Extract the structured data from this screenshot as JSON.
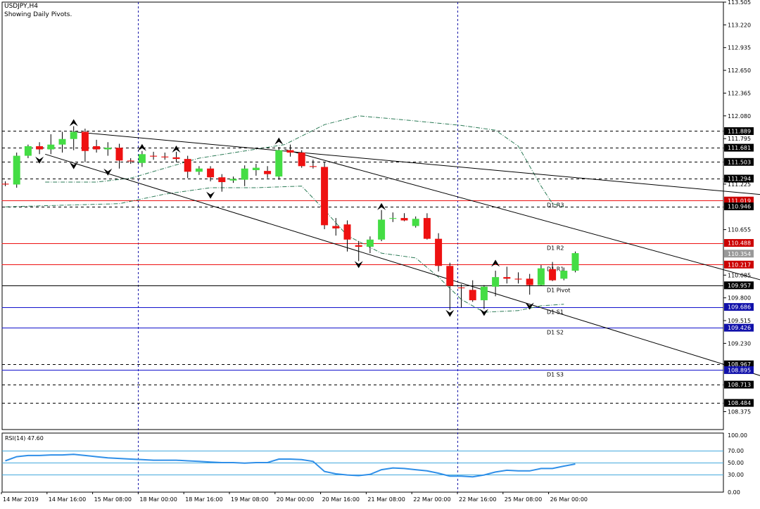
{
  "header": {
    "symbol_line": "USDJPY,H4",
    "sub_line": "Showing Daily Pivots."
  },
  "colors": {
    "background": "#ffffff",
    "axis": "#000000",
    "bull_candle": "#44dd44",
    "bear_candle": "#ee1111",
    "wick": "#000000",
    "resistance_line": "#ee1111",
    "support_line": "#1111cc",
    "pivot_line": "#000000",
    "trend_line": "#000000",
    "fractal_band": "#2a7a55",
    "rsi_line": "#2f8fe8",
    "rsi_level": "#44aadd",
    "vgrid": "#1a1aaa",
    "price_tag_dark": "#000000",
    "price_tag_red": "#cc0000",
    "price_tag_blue": "#1010aa",
    "price_tag_gray": "#999999"
  },
  "chart_data": {
    "type": "candlestick",
    "symbol": "USDJPY",
    "timeframe": "H4",
    "y_axis_ticks": [
      "113.505",
      "113.220",
      "112.935",
      "112.650",
      "112.365",
      "112.080",
      "111.795",
      "111.225",
      "110.655",
      "110.085",
      "109.800",
      "109.515",
      "109.230",
      "108.375"
    ],
    "ylim": [
      108.15,
      113.505
    ],
    "x_axis_ticks": [
      "14 Mar 2019",
      "14 Mar 16:00",
      "15 Mar 08:00",
      "18 Mar 00:00",
      "18 Mar 16:00",
      "19 Mar 08:00",
      "20 Mar 00:00",
      "20 Mar 16:00",
      "21 Mar 08:00",
      "22 Mar 00:00",
      "22 Mar 16:00",
      "25 Mar 08:00",
      "26 Mar 00:00"
    ],
    "candles": [
      [
        111.23,
        111.26,
        111.2,
        111.22
      ],
      [
        111.22,
        111.62,
        111.18,
        111.58
      ],
      [
        111.58,
        111.72,
        111.55,
        111.7
      ],
      [
        111.7,
        111.75,
        111.6,
        111.66
      ],
      [
        111.66,
        111.85,
        111.6,
        111.72
      ],
      [
        111.72,
        111.88,
        111.62,
        111.79
      ],
      [
        111.79,
        111.95,
        111.65,
        111.88
      ],
      [
        111.88,
        111.92,
        111.5,
        111.64
      ],
      [
        111.7,
        111.78,
        111.62,
        111.66
      ],
      [
        111.66,
        111.75,
        111.58,
        111.68
      ],
      [
        111.68,
        111.73,
        111.42,
        111.52
      ],
      [
        111.52,
        111.55,
        111.48,
        111.51
      ],
      [
        111.49,
        111.64,
        111.44,
        111.6
      ],
      [
        111.58,
        111.63,
        111.53,
        111.57
      ],
      [
        111.57,
        111.62,
        111.53,
        111.56
      ],
      [
        111.56,
        111.63,
        111.5,
        111.54
      ],
      [
        111.54,
        111.58,
        111.3,
        111.38
      ],
      [
        111.38,
        111.45,
        111.34,
        111.42
      ],
      [
        111.42,
        111.45,
        111.26,
        111.31
      ],
      [
        111.31,
        111.35,
        111.13,
        111.25
      ],
      [
        111.27,
        111.32,
        111.24,
        111.29
      ],
      [
        111.28,
        111.46,
        111.2,
        111.42
      ],
      [
        111.4,
        111.48,
        111.33,
        111.43
      ],
      [
        111.39,
        111.45,
        111.3,
        111.35
      ],
      [
        111.32,
        111.69,
        111.28,
        111.65
      ],
      [
        111.65,
        111.72,
        111.57,
        111.62
      ],
      [
        111.62,
        111.65,
        111.43,
        111.45
      ],
      [
        111.45,
        111.53,
        111.42,
        111.44
      ],
      [
        111.44,
        111.5,
        110.66,
        110.71
      ],
      [
        110.7,
        110.8,
        110.58,
        110.67
      ],
      [
        110.72,
        110.77,
        110.38,
        110.53
      ],
      [
        110.46,
        110.51,
        110.26,
        110.44
      ],
      [
        110.44,
        110.57,
        110.36,
        110.53
      ],
      [
        110.53,
        110.9,
        110.51,
        110.78
      ],
      [
        110.79,
        110.87,
        110.75,
        110.8
      ],
      [
        110.8,
        110.86,
        110.76,
        110.77
      ],
      [
        110.7,
        110.82,
        110.68,
        110.79
      ],
      [
        110.8,
        110.86,
        110.53,
        110.54
      ],
      [
        110.54,
        110.61,
        110.13,
        110.2
      ],
      [
        110.2,
        110.24,
        109.65,
        109.95
      ],
      [
        109.93,
        109.97,
        109.68,
        109.92
      ],
      [
        109.9,
        110.02,
        109.75,
        109.77
      ],
      [
        109.77,
        109.96,
        109.66,
        109.94
      ],
      [
        109.94,
        110.14,
        109.82,
        110.06
      ],
      [
        110.06,
        110.19,
        109.98,
        110.04
      ],
      [
        110.04,
        110.12,
        109.98,
        110.03
      ],
      [
        110.04,
        110.1,
        109.84,
        109.96
      ],
      [
        109.96,
        110.21,
        109.95,
        110.17
      ],
      [
        110.16,
        110.25,
        110.01,
        110.02
      ],
      [
        110.04,
        110.18,
        110.02,
        110.14
      ],
      [
        110.14,
        110.38,
        110.12,
        110.36
      ]
    ],
    "trend_lines": [
      {
        "from": [
          6,
          111.88
        ],
        "to": [
          72,
          111.02
        ]
      },
      {
        "from": [
          3.5,
          111.6
        ],
        "to": [
          72,
          108.57
        ]
      },
      {
        "from": [
          24.5,
          111.66
        ],
        "to": [
          72,
          109.8
        ]
      }
    ],
    "pivot_levels": [
      {
        "name": "D1 R3",
        "price": 111.019,
        "type": "resistance",
        "from_bar": 0
      },
      {
        "name": "D1 R2",
        "price": 110.488,
        "type": "resistance",
        "from_bar": 0
      },
      {
        "name": "D1 R1",
        "price": 110.217,
        "type": "resistance",
        "from_bar": 0
      },
      {
        "name": "D1 Pivot",
        "price": 109.957,
        "type": "pivot",
        "from_bar": 0
      },
      {
        "name": "D1 S1",
        "price": 109.686,
        "type": "support",
        "from_bar": 0
      },
      {
        "name": "D1 S2",
        "price": 109.426,
        "type": "support",
        "from_bar": 0
      },
      {
        "name": "D1 S3",
        "price": 108.895,
        "type": "support",
        "from_bar": 0
      }
    ],
    "price_tags": [
      {
        "price": 111.889,
        "label": "111.889",
        "style": "dark"
      },
      {
        "price": 111.681,
        "label": "111.681",
        "style": "dark"
      },
      {
        "price": 111.503,
        "label": "111.503",
        "style": "dark"
      },
      {
        "price": 111.294,
        "label": "111.294",
        "style": "dark"
      },
      {
        "price": 111.019,
        "label": "111.019",
        "style": "red"
      },
      {
        "price": 110.946,
        "label": "110.946",
        "style": "dark"
      },
      {
        "price": 110.488,
        "label": "110.488",
        "style": "red"
      },
      {
        "price": 110.354,
        "label": "110.354",
        "style": "gray"
      },
      {
        "price": 110.217,
        "label": "110.217",
        "style": "red"
      },
      {
        "price": 109.957,
        "label": "109.957",
        "style": "dark"
      },
      {
        "price": 109.686,
        "label": "109.686",
        "style": "blue"
      },
      {
        "price": 109.426,
        "label": "109.426",
        "style": "blue"
      },
      {
        "price": 108.967,
        "label": "108.967",
        "style": "dark"
      },
      {
        "price": 108.895,
        "label": "108.895",
        "style": "blue"
      },
      {
        "price": 108.713,
        "label": "108.713",
        "style": "dark"
      },
      {
        "price": 108.484,
        "label": "108.484",
        "style": "dark"
      }
    ],
    "dashed_levels": [
      111.889,
      111.681,
      111.503,
      111.294,
      110.946,
      108.967,
      108.713,
      108.484
    ],
    "vertical_separators": [
      "18 Mar 00:00",
      "22 Mar 16:00"
    ],
    "fractals_up": [
      [
        6,
        111.95
      ],
      [
        12,
        111.64
      ],
      [
        15,
        111.62
      ],
      [
        24,
        111.72
      ],
      [
        33,
        110.9
      ],
      [
        43,
        110.19
      ]
    ],
    "fractals_down": [
      [
        3,
        111.57
      ],
      [
        6,
        111.5
      ],
      [
        9,
        111.42
      ],
      [
        18,
        111.13
      ],
      [
        31,
        110.26
      ],
      [
        39,
        109.65
      ],
      [
        42,
        109.66
      ],
      [
        46,
        109.74
      ]
    ],
    "fractal_band_upper": [
      [
        3.5,
        111.25
      ],
      [
        8,
        111.25
      ],
      [
        11,
        111.3
      ],
      [
        17,
        111.55
      ],
      [
        21,
        111.64
      ],
      [
        24.5,
        111.72
      ],
      [
        28,
        111.97
      ],
      [
        31,
        112.08
      ],
      [
        35,
        112.03
      ],
      [
        40,
        111.96
      ],
      [
        43,
        111.9
      ],
      [
        45,
        111.7
      ],
      [
        47,
        111.2
      ],
      [
        48,
        110.98
      ],
      [
        49,
        110.94
      ]
    ],
    "fractal_band_lower": [
      [
        0,
        110.94
      ],
      [
        10,
        110.98
      ],
      [
        14,
        111.1
      ],
      [
        18,
        111.18
      ],
      [
        22,
        111.18
      ],
      [
        26,
        111.2
      ],
      [
        28,
        110.9
      ],
      [
        30,
        110.58
      ],
      [
        33,
        110.36
      ],
      [
        36,
        110.3
      ],
      [
        38,
        110.06
      ],
      [
        40,
        109.78
      ],
      [
        42,
        109.62
      ],
      [
        45,
        109.64
      ],
      [
        47,
        109.7
      ],
      [
        49,
        109.72
      ]
    ],
    "rsi": {
      "label": "RSI(14) 47.60",
      "period": 14,
      "current": 47.6,
      "levels": [
        30,
        50,
        70
      ],
      "ylim": [
        0,
        100
      ],
      "y_ticks": [
        "100.00",
        "70.00",
        "50.00",
        "30.00",
        "0.00"
      ],
      "values": [
        53,
        60,
        62,
        62,
        63,
        63,
        64,
        62,
        60,
        58,
        57,
        56,
        55,
        54,
        54,
        54,
        53,
        52,
        51,
        50,
        50,
        49,
        50,
        50,
        56,
        56,
        55,
        52,
        35,
        31,
        29,
        28,
        30,
        38,
        41,
        40,
        38,
        36,
        32,
        27,
        27,
        26,
        29,
        34,
        37,
        36,
        36,
        40,
        40,
        44,
        47.6
      ]
    }
  }
}
